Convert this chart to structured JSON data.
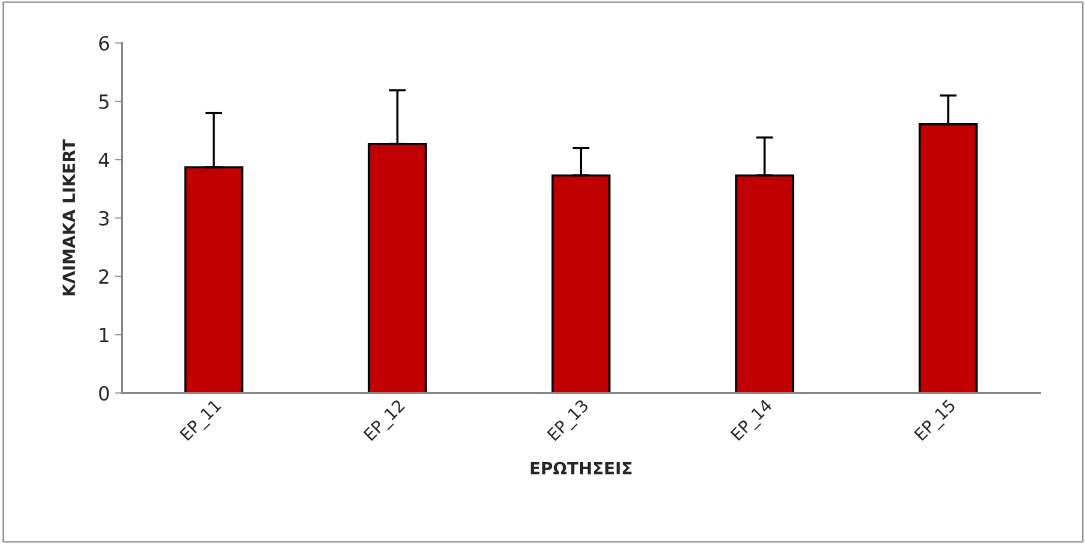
{
  "chart_data": {
    "type": "bar",
    "xlabel": "ΕΡΩΤΗΣΕΙΣ",
    "ylabel": "ΚΛΙΜΑΚΑ LIKERT",
    "categories": [
      "EP_11",
      "EP_12",
      "EP_13",
      "EP_14",
      "EP_15"
    ],
    "values": [
      3.87,
      4.27,
      3.73,
      3.73,
      4.61
    ],
    "errors": [
      [
        3.87,
        4.8
      ],
      [
        4.27,
        5.19
      ],
      [
        3.73,
        4.2
      ],
      [
        3.73,
        4.38
      ],
      [
        4.61,
        5.1
      ]
    ],
    "color": "#c00000",
    "ylim": [
      0,
      6
    ],
    "yticks": [
      0,
      1,
      2,
      3,
      4,
      5,
      6
    ],
    "grid": false
  }
}
